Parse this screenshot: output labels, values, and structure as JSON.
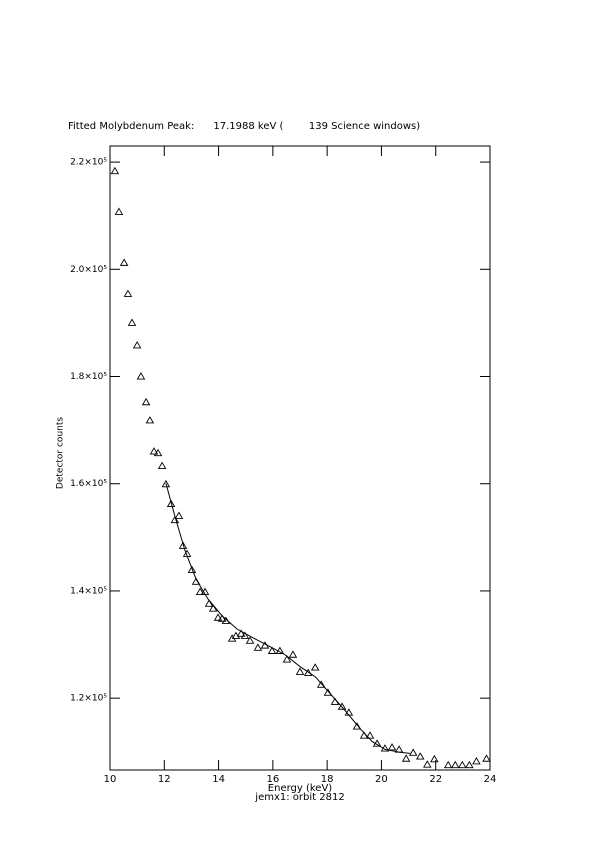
{
  "chart_data": {
    "type": "scatter",
    "title": "Fitted Molybdenum Peak:      17.1988 keV (        139 Science windows)",
    "x_label": "Energy (keV)",
    "subtitle": "jemx1: orbit 2812",
    "y_label": "Detector counts",
    "xlim": [
      10,
      24
    ],
    "xticks": [
      10,
      12,
      14,
      16,
      18,
      20,
      22,
      24
    ],
    "ylim": [
      106600,
      223000
    ],
    "yticks": [
      {
        "value": 120000,
        "label": "1.2×10⁵"
      },
      {
        "value": 140000,
        "label": "1.4×10⁵"
      },
      {
        "value": 160000,
        "label": "1.6×10⁵"
      },
      {
        "value": 180000,
        "label": "1.8×10⁵"
      },
      {
        "value": 200000,
        "label": "2.0×10⁵"
      },
      {
        "value": 220000,
        "label": "2.2×10⁵"
      }
    ],
    "series": [
      {
        "mode": "markers",
        "marker": "triangle",
        "color": "#000000",
        "x": [
          10.18,
          10.33,
          10.52,
          10.66,
          10.81,
          11.0,
          11.14,
          11.33,
          11.47,
          11.62,
          11.77,
          11.92,
          12.06,
          12.25,
          12.39,
          12.54,
          12.69,
          12.84,
          13.02,
          13.17,
          13.32,
          13.5,
          13.65,
          13.8,
          13.98,
          14.13,
          14.27,
          14.5,
          14.64,
          14.83,
          14.97,
          15.16,
          15.45,
          15.71,
          15.97,
          16.26,
          16.52,
          16.74,
          17.0,
          17.3,
          17.56,
          17.78,
          18.03,
          18.29,
          18.55,
          18.8,
          19.1,
          19.36,
          19.58,
          19.84,
          20.13,
          20.39,
          20.65,
          20.91,
          21.17,
          21.43,
          21.69,
          21.95,
          22.46,
          22.72,
          22.98,
          23.24,
          23.5,
          23.87
        ],
        "values": [
          218300,
          210700,
          201200,
          195400,
          190000,
          185800,
          180000,
          175200,
          171800,
          166000,
          165700,
          163300,
          159900,
          156200,
          153200,
          154000,
          148400,
          146900,
          143900,
          141700,
          139800,
          139800,
          137600,
          136700,
          135000,
          134800,
          134400,
          131100,
          131600,
          132000,
          131600,
          130700,
          129400,
          129800,
          128800,
          128800,
          127200,
          128100,
          124900,
          124700,
          125700,
          122500,
          121000,
          119300,
          118400,
          117300,
          114700,
          113000,
          113000,
          111500,
          110600,
          110800,
          110400,
          108700,
          109800,
          109100,
          107600,
          108600,
          107500,
          107500,
          107500,
          107500,
          108200,
          108700
        ]
      },
      {
        "mode": "line",
        "color": "#000000",
        "x": [
          12.06,
          12.39,
          12.76,
          13.17,
          13.61,
          14.13,
          14.68,
          15.27,
          15.9,
          16.45,
          17.0,
          17.56,
          18.11,
          18.66,
          19.21,
          19.65,
          20.13,
          20.68,
          21.05
        ],
        "values": [
          160100,
          153950,
          147600,
          142200,
          138500,
          135350,
          132900,
          131250,
          129600,
          128100,
          125900,
          124000,
          120850,
          117700,
          114350,
          111950,
          110450,
          109900,
          109700
        ]
      }
    ]
  }
}
